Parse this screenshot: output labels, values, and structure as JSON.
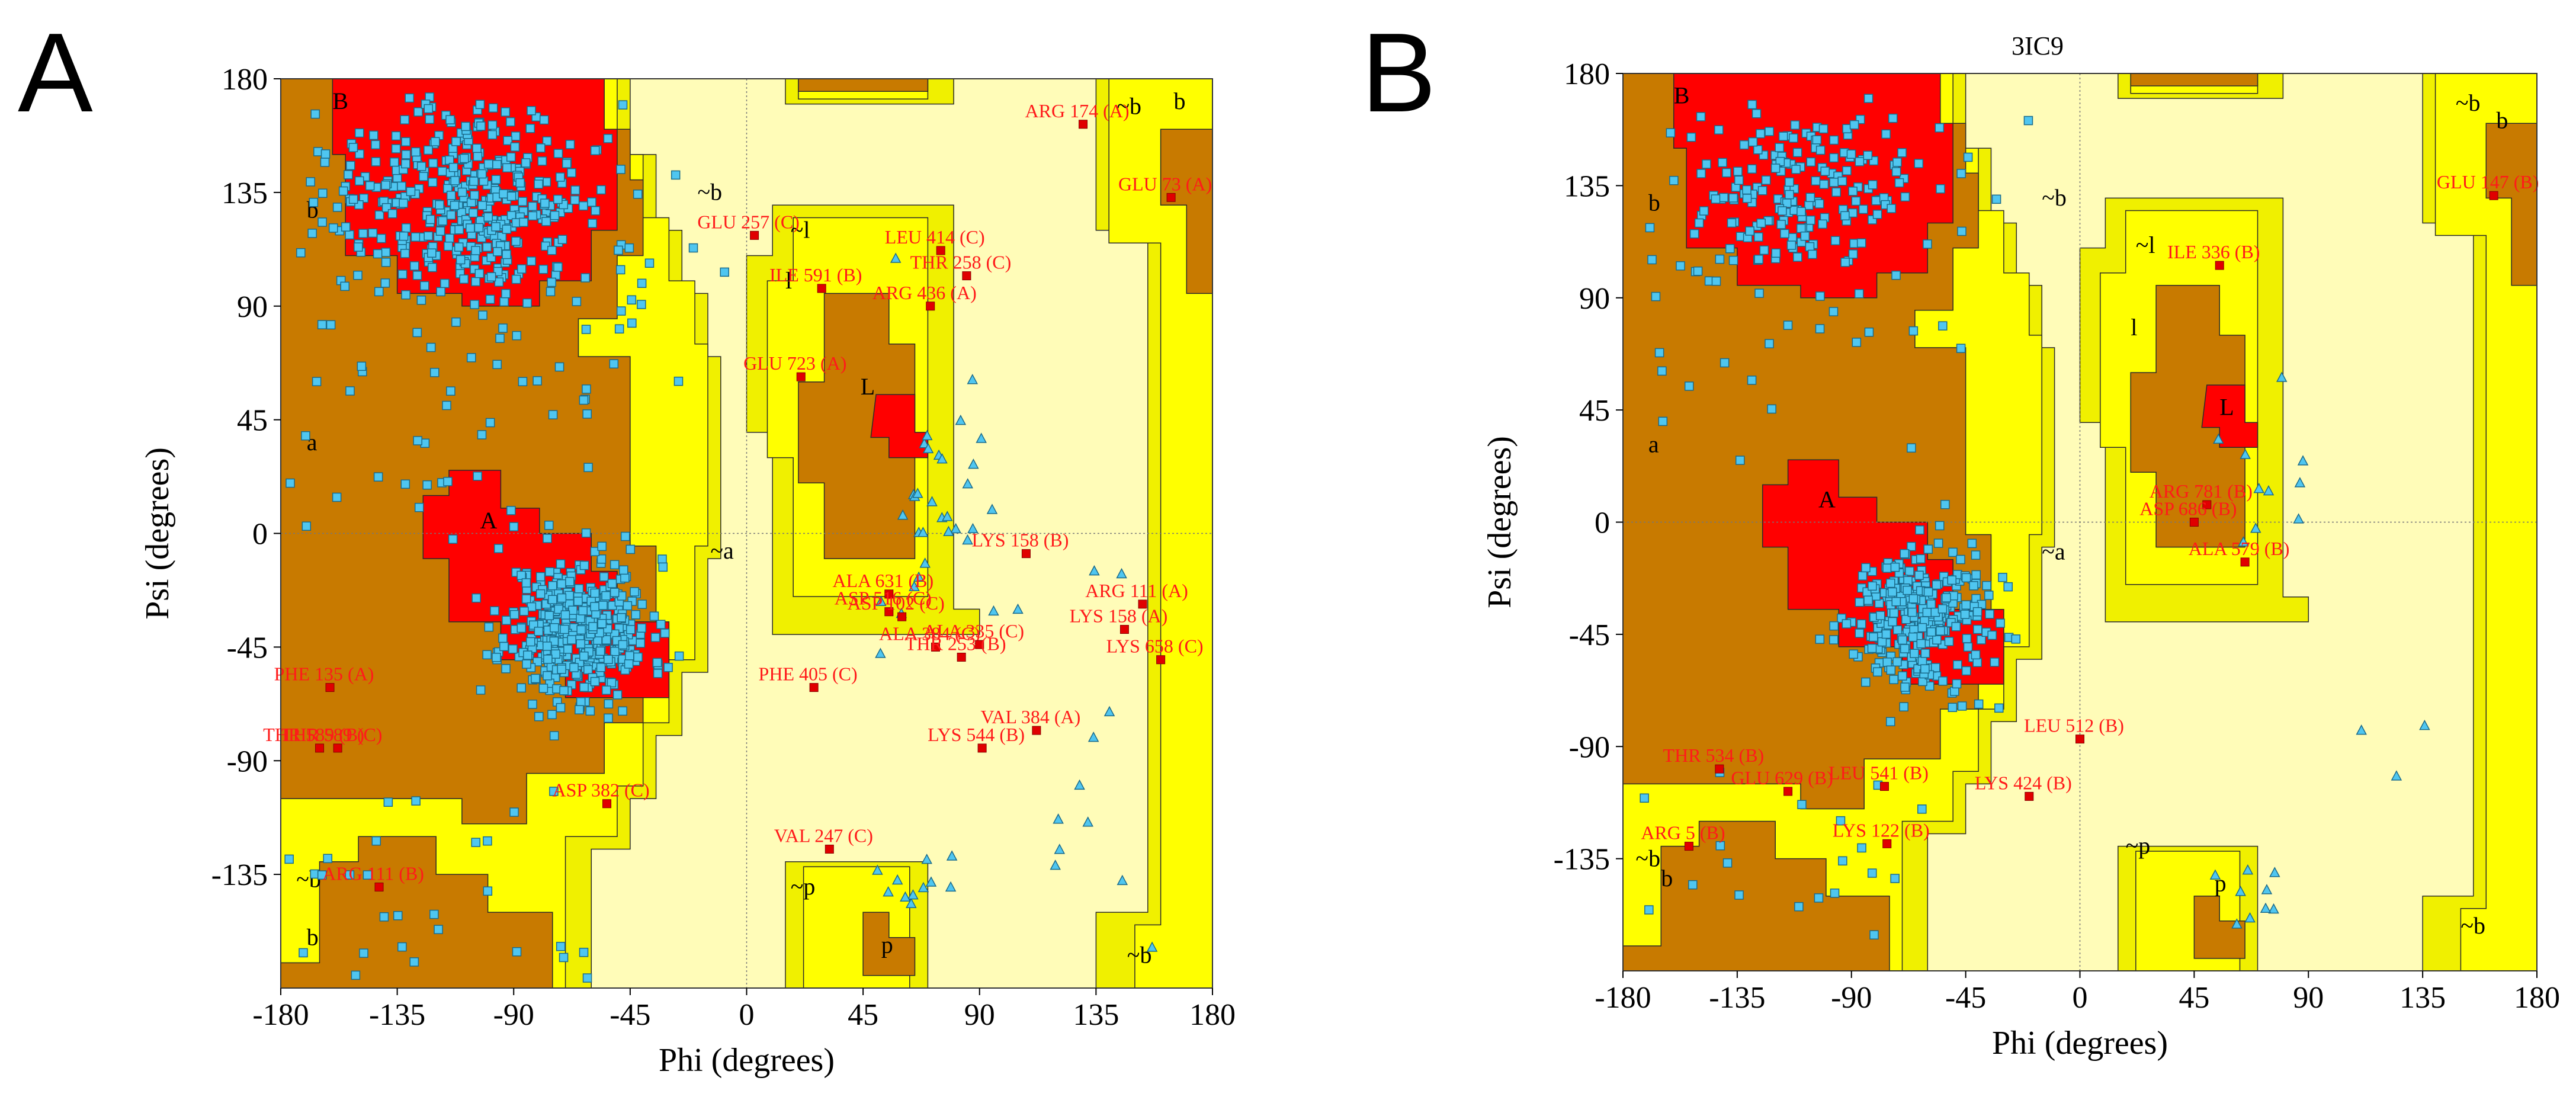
{
  "figure": {
    "panel_letters": [
      "A",
      "B"
    ],
    "panel_B_title_fragment": "3IC9"
  },
  "colors": {
    "core": "#ff0000",
    "allowed": "#c87a00",
    "generous": "#ffff00",
    "generous_outer": "#f0f000",
    "disallowed": "#fffcb8",
    "point_fill": "#4fc6f0",
    "point_stroke": "#1a6a8a",
    "outlier": "#e00000"
  },
  "chart_data": [
    {
      "type": "scatter",
      "panel": "A",
      "xlabel": "Phi (degrees)",
      "ylabel": "Psi (degrees)",
      "xlim": [
        -180,
        180
      ],
      "ylim": [
        -180,
        180
      ],
      "xticks": [
        -180,
        -135,
        -90,
        -45,
        0,
        45,
        90,
        135,
        180
      ],
      "yticks": [
        -135,
        -90,
        -45,
        0,
        45,
        90,
        135,
        180
      ],
      "region_labels": [
        {
          "text": "B",
          "x": -160,
          "y": 168
        },
        {
          "text": "b",
          "x": -170,
          "y": 125
        },
        {
          "text": "a",
          "x": -170,
          "y": 33
        },
        {
          "text": "A",
          "x": -103,
          "y": 2
        },
        {
          "text": "~b",
          "x": -19,
          "y": 132
        },
        {
          "text": "~a",
          "x": -14,
          "y": -10
        },
        {
          "text": "~l",
          "x": 17,
          "y": 117
        },
        {
          "text": "l",
          "x": 15,
          "y": 97
        },
        {
          "text": "L",
          "x": 44,
          "y": 55
        },
        {
          "text": "~b",
          "x": -174,
          "y": -140
        },
        {
          "text": "b",
          "x": -170,
          "y": -163
        },
        {
          "text": "~p",
          "x": 17,
          "y": -143
        },
        {
          "text": "p",
          "x": 52,
          "y": -166
        },
        {
          "text": "~b",
          "x": 147,
          "y": -170
        },
        {
          "text": "~b",
          "x": 143,
          "y": 166
        },
        {
          "text": "b",
          "x": 165,
          "y": 168
        }
      ],
      "outliers": [
        {
          "label": "ARG 174 (A)",
          "x": 130,
          "y": 162
        },
        {
          "label": "GLU 73 (A)",
          "x": 164,
          "y": 133
        },
        {
          "label": "GLU 257 (C)",
          "x": 3,
          "y": 118
        },
        {
          "label": "LEU 414 (C)",
          "x": 75,
          "y": 112
        },
        {
          "label": "THR 258 (C)",
          "x": 85,
          "y": 102
        },
        {
          "label": "ILE 591 (B)",
          "x": 29,
          "y": 97
        },
        {
          "label": "ARG 436 (A)",
          "x": 71,
          "y": 90
        },
        {
          "label": "GLU 723 (A)",
          "x": 21,
          "y": 62
        },
        {
          "label": "LYS 158 (B)",
          "x": 108,
          "y": -8
        },
        {
          "label": "ALA 631 (B)",
          "x": 55,
          "y": -24
        },
        {
          "label": "ASP 516 (C)",
          "x": 55,
          "y": -31
        },
        {
          "label": "ASP 102 (C)",
          "x": 60,
          "y": -33
        },
        {
          "label": "ARG 111 (A)",
          "x": 153,
          "y": -28
        },
        {
          "label": "LYS 158 (A)",
          "x": 146,
          "y": -38
        },
        {
          "label": "ALA 384 (C)",
          "x": 73,
          "y": -45
        },
        {
          "label": "ALA 335 (C)",
          "x": 90,
          "y": -44
        },
        {
          "label": "THR 253 (B)",
          "x": 83,
          "y": -49
        },
        {
          "label": "LYS 658 (C)",
          "x": 160,
          "y": -50
        },
        {
          "label": "PHE 405 (C)",
          "x": 26,
          "y": -61
        },
        {
          "label": "PHE 135 (A)",
          "x": -161,
          "y": -61
        },
        {
          "label": "THR 589 (B)",
          "x": -165,
          "y": -85
        },
        {
          "label": "THR 589 (C)",
          "x": -158,
          "y": -85
        },
        {
          "label": "VAL 384 (A)",
          "x": 112,
          "y": -78
        },
        {
          "label": "LYS 544 (B)",
          "x": 91,
          "y": -85
        },
        {
          "label": "ASP 382 (C)",
          "x": -54,
          "y": -107
        },
        {
          "label": "VAL 247 (C)",
          "x": 32,
          "y": -125
        },
        {
          "label": "ARG 111 (B)",
          "x": -142,
          "y": -140
        }
      ]
    },
    {
      "type": "scatter",
      "panel": "B",
      "xlabel": "Phi (degrees)",
      "ylabel": "Psi (degrees)",
      "xlim": [
        -180,
        180
      ],
      "ylim": [
        -180,
        180
      ],
      "xticks": [
        -180,
        -135,
        -90,
        -45,
        0,
        45,
        90,
        135,
        180
      ],
      "yticks": [
        -135,
        -90,
        -45,
        0,
        45,
        90,
        135,
        180
      ],
      "region_labels": [
        {
          "text": "B",
          "x": -160,
          "y": 168
        },
        {
          "text": "b",
          "x": -170,
          "y": 125
        },
        {
          "text": "a",
          "x": -170,
          "y": 28
        },
        {
          "text": "A",
          "x": -103,
          "y": 6
        },
        {
          "text": "~b",
          "x": -15,
          "y": 127
        },
        {
          "text": "~a",
          "x": -15,
          "y": -15
        },
        {
          "text": "~l",
          "x": 22,
          "y": 108
        },
        {
          "text": "l",
          "x": 20,
          "y": 75
        },
        {
          "text": "L",
          "x": 55,
          "y": 43
        },
        {
          "text": "~b",
          "x": -175,
          "y": -138
        },
        {
          "text": "b",
          "x": -165,
          "y": -146
        },
        {
          "text": "~p",
          "x": 18,
          "y": -133
        },
        {
          "text": "p",
          "x": 53,
          "y": -148
        },
        {
          "text": "~b",
          "x": 150,
          "y": -165
        },
        {
          "text": "~b",
          "x": 148,
          "y": 165
        },
        {
          "text": "b",
          "x": 164,
          "y": 158
        }
      ],
      "outliers": [
        {
          "label": "GLU 147 (B)",
          "x": 163,
          "y": 131
        },
        {
          "label": "ILE 336 (B)",
          "x": 55,
          "y": 103
        },
        {
          "label": "ARG 781 (B)",
          "x": 50,
          "y": 7
        },
        {
          "label": "ASP 686 (B)",
          "x": 45,
          "y": 0
        },
        {
          "label": "ALA 579 (B)",
          "x": 65,
          "y": -16
        },
        {
          "label": "LEU 512 (B)",
          "x": 0,
          "y": -87
        },
        {
          "label": "THR 534 (B)",
          "x": -142,
          "y": -99
        },
        {
          "label": "GLU 629 (B)",
          "x": -115,
          "y": -108
        },
        {
          "label": "LEU 541 (B)",
          "x": -77,
          "y": -106
        },
        {
          "label": "LYS 424 (B)",
          "x": -20,
          "y": -110
        },
        {
          "label": "ARG 5 (B)",
          "x": -154,
          "y": -130
        },
        {
          "label": "LYS 122 (B)",
          "x": -76,
          "y": -129
        }
      ]
    }
  ]
}
